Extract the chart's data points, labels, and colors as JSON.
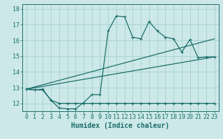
{
  "xlabel": "Humidex (Indice chaleur)",
  "bg_color": "#cce8e8",
  "line_color": "#1a6e6a",
  "grid_color": "#aad4d4",
  "xlim": [
    -0.5,
    23.5
  ],
  "ylim": [
    11.5,
    18.3
  ],
  "yticks": [
    12,
    13,
    14,
    15,
    16,
    17,
    18
  ],
  "xticks": [
    0,
    1,
    2,
    3,
    4,
    5,
    6,
    7,
    8,
    9,
    10,
    11,
    12,
    13,
    14,
    15,
    16,
    17,
    18,
    19,
    20,
    21,
    22,
    23
  ],
  "curve1_x": [
    0,
    1,
    2,
    3,
    4,
    5,
    6,
    7,
    8,
    9,
    10,
    11,
    12,
    13,
    14,
    15,
    16,
    17,
    18,
    19,
    20,
    21,
    22,
    23
  ],
  "curve1_y": [
    12.9,
    12.85,
    12.9,
    12.2,
    11.7,
    11.65,
    11.65,
    12.05,
    12.55,
    12.55,
    16.6,
    17.55,
    17.5,
    16.2,
    16.1,
    17.2,
    16.6,
    16.2,
    16.1,
    15.25,
    16.05,
    14.9,
    14.95,
    14.95
  ],
  "curve2_x": [
    0,
    1,
    2,
    3,
    4,
    5,
    6,
    7,
    8,
    9,
    10,
    11,
    12,
    13,
    14,
    15,
    16,
    17,
    18,
    19,
    20,
    21,
    22,
    23
  ],
  "curve2_y": [
    12.9,
    12.85,
    12.85,
    12.2,
    12.0,
    12.0,
    12.0,
    12.0,
    12.0,
    12.0,
    12.0,
    12.0,
    12.0,
    12.0,
    12.0,
    12.0,
    12.0,
    12.0,
    12.0,
    12.0,
    12.0,
    12.0,
    12.0,
    12.0
  ],
  "curve3_x": [
    0,
    23
  ],
  "curve3_y": [
    12.9,
    16.1
  ],
  "curve4_x": [
    0,
    23
  ],
  "curve4_y": [
    12.9,
    14.95
  ],
  "xlabel_fontsize": 7,
  "tick_fontsize": 6
}
